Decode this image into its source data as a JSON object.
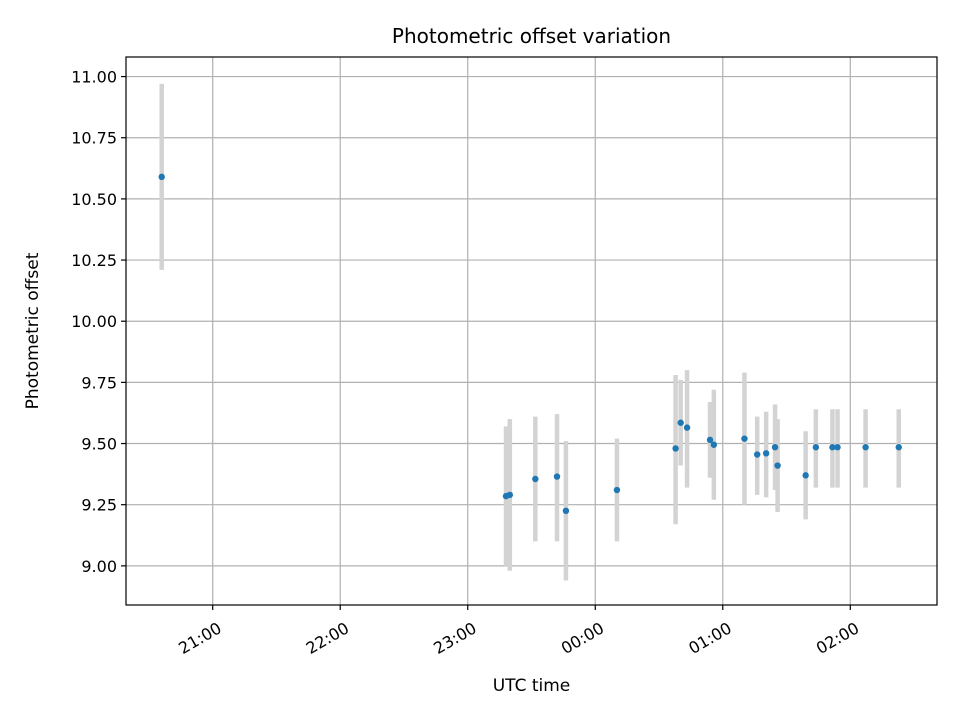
{
  "chart_data": {
    "type": "scatter",
    "title": "Photometric offset variation",
    "xlabel": "UTC time",
    "ylabel": "Photometric offset",
    "x_unit": "hours (UTC, continuing past midnight)",
    "xlim": [
      20.32,
      26.68
    ],
    "ylim": [
      8.84,
      11.08
    ],
    "grid": true,
    "x_ticks": [
      {
        "value": 21,
        "label": "21:00"
      },
      {
        "value": 22,
        "label": "22:00"
      },
      {
        "value": 23,
        "label": "23:00"
      },
      {
        "value": 24,
        "label": "00:00"
      },
      {
        "value": 25,
        "label": "01:00"
      },
      {
        "value": 26,
        "label": "02:00"
      }
    ],
    "y_ticks": [
      {
        "value": 9.0,
        "label": "9.00"
      },
      {
        "value": 9.25,
        "label": "9.25"
      },
      {
        "value": 9.5,
        "label": "9.50"
      },
      {
        "value": 9.75,
        "label": "9.75"
      },
      {
        "value": 10.0,
        "label": "10.00"
      },
      {
        "value": 10.25,
        "label": "10.25"
      },
      {
        "value": 10.5,
        "label": "10.50"
      },
      {
        "value": 10.75,
        "label": "10.75"
      },
      {
        "value": 11.0,
        "label": "11.00"
      }
    ],
    "colors": {
      "point": "#1f77b4",
      "errorbar": "#d3d3d3",
      "grid": "#b0b0b0"
    },
    "points": [
      {
        "x": 20.6,
        "y": 10.59,
        "lo": 10.21,
        "hi": 10.97
      },
      {
        "x": 23.3,
        "y": 9.285,
        "lo": 9.0,
        "hi": 9.57
      },
      {
        "x": 23.33,
        "y": 9.29,
        "lo": 8.98,
        "hi": 9.6
      },
      {
        "x": 23.53,
        "y": 9.355,
        "lo": 9.1,
        "hi": 9.61
      },
      {
        "x": 23.7,
        "y": 9.365,
        "lo": 9.1,
        "hi": 9.62
      },
      {
        "x": 23.77,
        "y": 9.225,
        "lo": 8.94,
        "hi": 9.51
      },
      {
        "x": 24.17,
        "y": 9.31,
        "lo": 9.1,
        "hi": 9.52
      },
      {
        "x": 24.63,
        "y": 9.48,
        "lo": 9.17,
        "hi": 9.78
      },
      {
        "x": 24.67,
        "y": 9.585,
        "lo": 9.41,
        "hi": 9.76
      },
      {
        "x": 24.72,
        "y": 9.565,
        "lo": 9.32,
        "hi": 9.8
      },
      {
        "x": 24.9,
        "y": 9.515,
        "lo": 9.36,
        "hi": 9.67
      },
      {
        "x": 24.93,
        "y": 9.495,
        "lo": 9.27,
        "hi": 9.72
      },
      {
        "x": 25.17,
        "y": 9.52,
        "lo": 9.25,
        "hi": 9.79
      },
      {
        "x": 25.27,
        "y": 9.455,
        "lo": 9.29,
        "hi": 9.61
      },
      {
        "x": 25.34,
        "y": 9.46,
        "lo": 9.28,
        "hi": 9.63
      },
      {
        "x": 25.41,
        "y": 9.485,
        "lo": 9.31,
        "hi": 9.66
      },
      {
        "x": 25.43,
        "y": 9.41,
        "lo": 9.22,
        "hi": 9.6
      },
      {
        "x": 25.65,
        "y": 9.37,
        "lo": 9.19,
        "hi": 9.55
      },
      {
        "x": 25.73,
        "y": 9.485,
        "lo": 9.32,
        "hi": 9.64
      },
      {
        "x": 25.86,
        "y": 9.485,
        "lo": 9.32,
        "hi": 9.64
      },
      {
        "x": 25.9,
        "y": 9.485,
        "lo": 9.32,
        "hi": 9.64
      },
      {
        "x": 26.12,
        "y": 9.485,
        "lo": 9.32,
        "hi": 9.64
      },
      {
        "x": 26.38,
        "y": 9.485,
        "lo": 9.32,
        "hi": 9.64
      }
    ]
  }
}
